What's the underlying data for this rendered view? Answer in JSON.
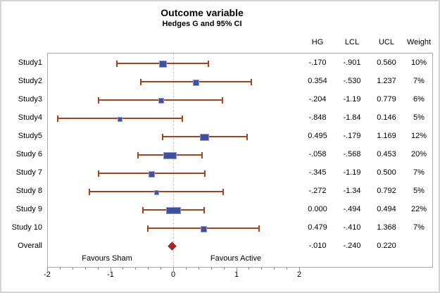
{
  "chart_data": {
    "type": "scatter",
    "variant": "forest-plot",
    "title": "Outcome variable",
    "subtitle": "Hedges G and 95% CI",
    "columns": [
      "HG",
      "LCL",
      "UCL",
      "Weight"
    ],
    "axis": {
      "min": -2,
      "max": 2,
      "major_ticks": [
        -2,
        -1,
        0,
        1,
        2
      ],
      "minor_step": 0.2,
      "reference_line": 0
    },
    "footnote_left": "Favours Sham",
    "footnote_right": "Favours Active",
    "studies": [
      {
        "label": "Study1",
        "hg": -0.17,
        "lcl": -0.901,
        "ucl": 0.56,
        "weight": 10,
        "hg_text": "-.170",
        "lcl_text": "-.901",
        "ucl_text": "0.560",
        "weight_text": "10%"
      },
      {
        "label": "Study2",
        "hg": 0.354,
        "lcl": -0.53,
        "ucl": 1.237,
        "weight": 7,
        "hg_text": "0.354",
        "lcl_text": "-.530",
        "ucl_text": "1.237",
        "weight_text": "7%"
      },
      {
        "label": "Study3",
        "hg": -0.204,
        "lcl": -1.19,
        "ucl": 0.779,
        "weight": 6,
        "hg_text": "-.204",
        "lcl_text": "-1.19",
        "ucl_text": "0.779",
        "weight_text": "6%"
      },
      {
        "label": "Study4",
        "hg": -0.848,
        "lcl": -1.84,
        "ucl": 0.146,
        "weight": 5,
        "hg_text": "-.848",
        "lcl_text": "-1.84",
        "ucl_text": "0.146",
        "weight_text": "5%"
      },
      {
        "label": "Study5",
        "hg": 0.495,
        "lcl": -0.179,
        "ucl": 1.169,
        "weight": 12,
        "hg_text": "0.495",
        "lcl_text": "-.179",
        "ucl_text": "1.169",
        "weight_text": "12%"
      },
      {
        "label": "Study 6",
        "hg": -0.058,
        "lcl": -0.568,
        "ucl": 0.453,
        "weight": 20,
        "hg_text": "-.058",
        "lcl_text": "-.568",
        "ucl_text": "0.453",
        "weight_text": "20%"
      },
      {
        "label": "Study 7",
        "hg": -0.345,
        "lcl": -1.19,
        "ucl": 0.5,
        "weight": 7,
        "hg_text": "-.345",
        "lcl_text": "-1.19",
        "ucl_text": "0.500",
        "weight_text": "7%"
      },
      {
        "label": "Study 8",
        "hg": -0.272,
        "lcl": -1.34,
        "ucl": 0.792,
        "weight": 5,
        "hg_text": "-.272",
        "lcl_text": "-1.34",
        "ucl_text": "0.792",
        "weight_text": "5%"
      },
      {
        "label": "Study 9",
        "hg": 0.0,
        "lcl": -0.494,
        "ucl": 0.494,
        "weight": 22,
        "hg_text": "0.000",
        "lcl_text": "-.494",
        "ucl_text": "0.494",
        "weight_text": "22%"
      },
      {
        "label": "Study 10",
        "hg": 0.479,
        "lcl": -0.41,
        "ucl": 1.368,
        "weight": 7,
        "hg_text": "0.479",
        "lcl_text": "-.410",
        "ucl_text": "1.368",
        "weight_text": "7%"
      }
    ],
    "overall": {
      "label": "Overall",
      "hg": -0.01,
      "lcl": -0.24,
      "ucl": 0.22,
      "hg_text": "-.010",
      "lcl_text": "-.240",
      "ucl_text": "0.220",
      "weight_text": ""
    }
  },
  "colors": {
    "ci_line": "#A04524",
    "marker_fill": "#41519B",
    "marker_border": "#8E98C6",
    "overall_diamond": "#A22C25",
    "frame_border": "#A9A9A9",
    "reference_line": "#C9C9C9",
    "tick": "#8A8A8A",
    "text": "#000000",
    "outer_border": "#D3D3D3"
  }
}
